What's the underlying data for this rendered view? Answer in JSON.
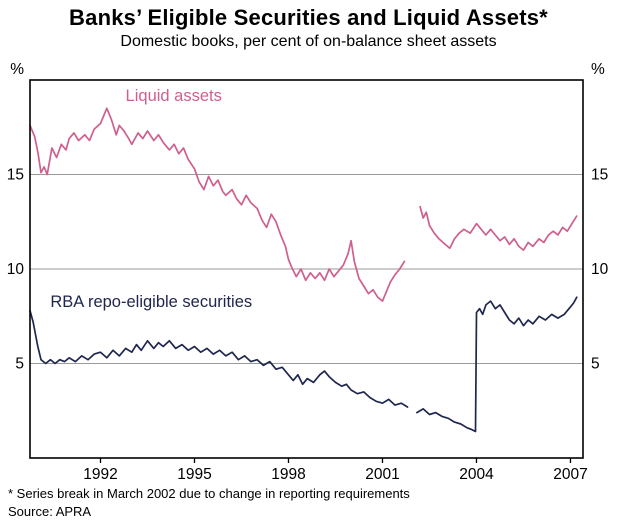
{
  "title": "Banks’ Eligible Securities and Liquid Assets*",
  "subtitle": "Domestic books, per cent of on-balance sheet assets",
  "footnote": "* Series break in March 2002 due to change in reporting requirements",
  "source": "Source: APRA",
  "chart_data": {
    "type": "line",
    "title": "Banks’ Eligible Securities and Liquid Assets*",
    "subtitle": "Domestic books, per cent of on-balance sheet assets",
    "ylabel": "%",
    "xlabel": "",
    "ylim": [
      0,
      20
    ],
    "xlim": [
      1989.75,
      2007.4
    ],
    "yticks": [
      5,
      10,
      15
    ],
    "xticks": [
      1992,
      1995,
      1998,
      2001,
      2004,
      2007
    ],
    "grid": "horizontal",
    "legend_position": "inline-annotations",
    "annotations": [
      "Liquid assets",
      "RBA repo-eligible securities"
    ],
    "series": [
      {
        "name": "Liquid assets",
        "color": "#cf5f8e",
        "label_pos": [
          1992.8,
          18.9
        ],
        "points": [
          [
            1989.75,
            17.6
          ],
          [
            1989.9,
            17.0
          ],
          [
            1990.0,
            16.2
          ],
          [
            1990.1,
            15.1
          ],
          [
            1990.2,
            15.4
          ],
          [
            1990.3,
            15.0
          ],
          [
            1990.45,
            16.4
          ],
          [
            1990.6,
            15.9
          ],
          [
            1990.75,
            16.6
          ],
          [
            1990.9,
            16.3
          ],
          [
            1991.0,
            16.9
          ],
          [
            1991.15,
            17.2
          ],
          [
            1991.3,
            16.8
          ],
          [
            1991.5,
            17.1
          ],
          [
            1991.65,
            16.8
          ],
          [
            1991.8,
            17.4
          ],
          [
            1992.0,
            17.7
          ],
          [
            1992.1,
            18.1
          ],
          [
            1992.2,
            18.5
          ],
          [
            1992.35,
            17.9
          ],
          [
            1992.5,
            17.1
          ],
          [
            1992.6,
            17.6
          ],
          [
            1992.75,
            17.3
          ],
          [
            1992.9,
            16.9
          ],
          [
            1993.0,
            16.6
          ],
          [
            1993.2,
            17.2
          ],
          [
            1993.35,
            16.9
          ],
          [
            1993.5,
            17.3
          ],
          [
            1993.7,
            16.8
          ],
          [
            1993.85,
            17.1
          ],
          [
            1994.0,
            16.7
          ],
          [
            1994.2,
            16.3
          ],
          [
            1994.35,
            16.6
          ],
          [
            1994.5,
            16.1
          ],
          [
            1994.65,
            16.4
          ],
          [
            1994.8,
            15.8
          ],
          [
            1995.0,
            15.3
          ],
          [
            1995.15,
            14.6
          ],
          [
            1995.3,
            14.2
          ],
          [
            1995.45,
            14.9
          ],
          [
            1995.6,
            14.4
          ],
          [
            1995.75,
            14.7
          ],
          [
            1995.9,
            14.1
          ],
          [
            1996.0,
            13.9
          ],
          [
            1996.2,
            14.2
          ],
          [
            1996.35,
            13.7
          ],
          [
            1996.5,
            13.4
          ],
          [
            1996.65,
            13.9
          ],
          [
            1996.8,
            13.5
          ],
          [
            1997.0,
            13.2
          ],
          [
            1997.15,
            12.6
          ],
          [
            1997.3,
            12.2
          ],
          [
            1997.45,
            12.9
          ],
          [
            1997.6,
            12.5
          ],
          [
            1997.75,
            11.8
          ],
          [
            1997.9,
            11.2
          ],
          [
            1998.0,
            10.5
          ],
          [
            1998.1,
            10.1
          ],
          [
            1998.25,
            9.6
          ],
          [
            1998.4,
            10.0
          ],
          [
            1998.55,
            9.4
          ],
          [
            1998.7,
            9.8
          ],
          [
            1998.85,
            9.5
          ],
          [
            1999.0,
            9.8
          ],
          [
            1999.15,
            9.4
          ],
          [
            1999.3,
            10.0
          ],
          [
            1999.45,
            9.6
          ],
          [
            1999.6,
            9.9
          ],
          [
            1999.75,
            10.2
          ],
          [
            1999.9,
            10.8
          ],
          [
            2000.0,
            11.5
          ],
          [
            2000.1,
            10.4
          ],
          [
            2000.25,
            9.5
          ],
          [
            2000.4,
            9.1
          ],
          [
            2000.55,
            8.7
          ],
          [
            2000.7,
            8.9
          ],
          [
            2000.85,
            8.5
          ],
          [
            2001.0,
            8.3
          ],
          [
            2001.1,
            8.7
          ],
          [
            2001.25,
            9.3
          ],
          [
            2001.4,
            9.7
          ],
          [
            2001.55,
            10.0
          ],
          [
            2001.7,
            10.4
          ],
          null,
          [
            2002.2,
            13.3
          ],
          [
            2002.3,
            12.7
          ],
          [
            2002.4,
            13.0
          ],
          [
            2002.5,
            12.3
          ],
          [
            2002.65,
            11.9
          ],
          [
            2002.8,
            11.6
          ],
          [
            2003.0,
            11.3
          ],
          [
            2003.15,
            11.1
          ],
          [
            2003.3,
            11.6
          ],
          [
            2003.45,
            11.9
          ],
          [
            2003.6,
            12.1
          ],
          [
            2003.8,
            11.9
          ],
          [
            2004.0,
            12.4
          ],
          [
            2004.15,
            12.1
          ],
          [
            2004.3,
            11.8
          ],
          [
            2004.45,
            12.1
          ],
          [
            2004.6,
            11.8
          ],
          [
            2004.75,
            11.5
          ],
          [
            2004.9,
            11.7
          ],
          [
            2005.05,
            11.3
          ],
          [
            2005.2,
            11.6
          ],
          [
            2005.35,
            11.2
          ],
          [
            2005.5,
            11.0
          ],
          [
            2005.65,
            11.4
          ],
          [
            2005.8,
            11.2
          ],
          [
            2006.0,
            11.6
          ],
          [
            2006.15,
            11.4
          ],
          [
            2006.3,
            11.8
          ],
          [
            2006.45,
            12.0
          ],
          [
            2006.6,
            11.8
          ],
          [
            2006.75,
            12.2
          ],
          [
            2006.9,
            12.0
          ],
          [
            2007.05,
            12.4
          ],
          [
            2007.2,
            12.8
          ]
        ]
      },
      {
        "name": "RBA repo-eligible securities",
        "color": "#20274e",
        "label_pos": [
          1990.4,
          8.0
        ],
        "points": [
          [
            1989.75,
            7.8
          ],
          [
            1989.85,
            7.2
          ],
          [
            1990.0,
            5.9
          ],
          [
            1990.1,
            5.2
          ],
          [
            1990.25,
            5.0
          ],
          [
            1990.4,
            5.2
          ],
          [
            1990.55,
            5.0
          ],
          [
            1990.7,
            5.2
          ],
          [
            1990.85,
            5.1
          ],
          [
            1991.0,
            5.3
          ],
          [
            1991.2,
            5.1
          ],
          [
            1991.4,
            5.4
          ],
          [
            1991.6,
            5.2
          ],
          [
            1991.8,
            5.5
          ],
          [
            1992.0,
            5.6
          ],
          [
            1992.2,
            5.3
          ],
          [
            1992.4,
            5.7
          ],
          [
            1992.6,
            5.4
          ],
          [
            1992.8,
            5.8
          ],
          [
            1993.0,
            5.6
          ],
          [
            1993.15,
            6.0
          ],
          [
            1993.3,
            5.7
          ],
          [
            1993.5,
            6.2
          ],
          [
            1993.7,
            5.8
          ],
          [
            1993.85,
            6.1
          ],
          [
            1994.0,
            5.9
          ],
          [
            1994.2,
            6.2
          ],
          [
            1994.4,
            5.8
          ],
          [
            1994.6,
            6.0
          ],
          [
            1994.8,
            5.7
          ],
          [
            1995.0,
            5.9
          ],
          [
            1995.2,
            5.6
          ],
          [
            1995.4,
            5.8
          ],
          [
            1995.6,
            5.5
          ],
          [
            1995.8,
            5.7
          ],
          [
            1996.0,
            5.4
          ],
          [
            1996.2,
            5.6
          ],
          [
            1996.4,
            5.2
          ],
          [
            1996.6,
            5.4
          ],
          [
            1996.8,
            5.1
          ],
          [
            1997.0,
            5.2
          ],
          [
            1997.2,
            4.9
          ],
          [
            1997.4,
            5.1
          ],
          [
            1997.6,
            4.7
          ],
          [
            1997.8,
            4.8
          ],
          [
            1998.0,
            4.4
          ],
          [
            1998.15,
            4.1
          ],
          [
            1998.3,
            4.4
          ],
          [
            1998.45,
            3.9
          ],
          [
            1998.6,
            4.2
          ],
          [
            1998.8,
            4.0
          ],
          [
            1999.0,
            4.4
          ],
          [
            1999.15,
            4.6
          ],
          [
            1999.3,
            4.3
          ],
          [
            1999.5,
            4.0
          ],
          [
            1999.7,
            3.8
          ],
          [
            1999.85,
            3.9
          ],
          [
            2000.0,
            3.6
          ],
          [
            2000.2,
            3.4
          ],
          [
            2000.4,
            3.5
          ],
          [
            2000.6,
            3.2
          ],
          [
            2000.8,
            3.0
          ],
          [
            2001.0,
            2.9
          ],
          [
            2001.2,
            3.1
          ],
          [
            2001.4,
            2.8
          ],
          [
            2001.6,
            2.9
          ],
          [
            2001.8,
            2.7
          ],
          null,
          [
            2002.1,
            2.4
          ],
          [
            2002.3,
            2.6
          ],
          [
            2002.5,
            2.3
          ],
          [
            2002.7,
            2.4
          ],
          [
            2002.9,
            2.2
          ],
          [
            2003.1,
            2.1
          ],
          [
            2003.3,
            1.9
          ],
          [
            2003.5,
            1.8
          ],
          [
            2003.7,
            1.6
          ],
          [
            2003.85,
            1.5
          ],
          [
            2003.97,
            1.4
          ],
          [
            2004.0,
            7.7
          ],
          [
            2004.1,
            7.9
          ],
          [
            2004.2,
            7.6
          ],
          [
            2004.3,
            8.1
          ],
          [
            2004.45,
            8.3
          ],
          [
            2004.6,
            7.9
          ],
          [
            2004.75,
            8.1
          ],
          [
            2004.9,
            7.7
          ],
          [
            2005.05,
            7.3
          ],
          [
            2005.2,
            7.1
          ],
          [
            2005.35,
            7.4
          ],
          [
            2005.5,
            7.0
          ],
          [
            2005.65,
            7.3
          ],
          [
            2005.8,
            7.1
          ],
          [
            2006.0,
            7.5
          ],
          [
            2006.2,
            7.3
          ],
          [
            2006.4,
            7.6
          ],
          [
            2006.6,
            7.4
          ],
          [
            2006.8,
            7.6
          ],
          [
            2007.0,
            8.0
          ],
          [
            2007.1,
            8.2
          ],
          [
            2007.2,
            8.5
          ]
        ]
      }
    ]
  }
}
